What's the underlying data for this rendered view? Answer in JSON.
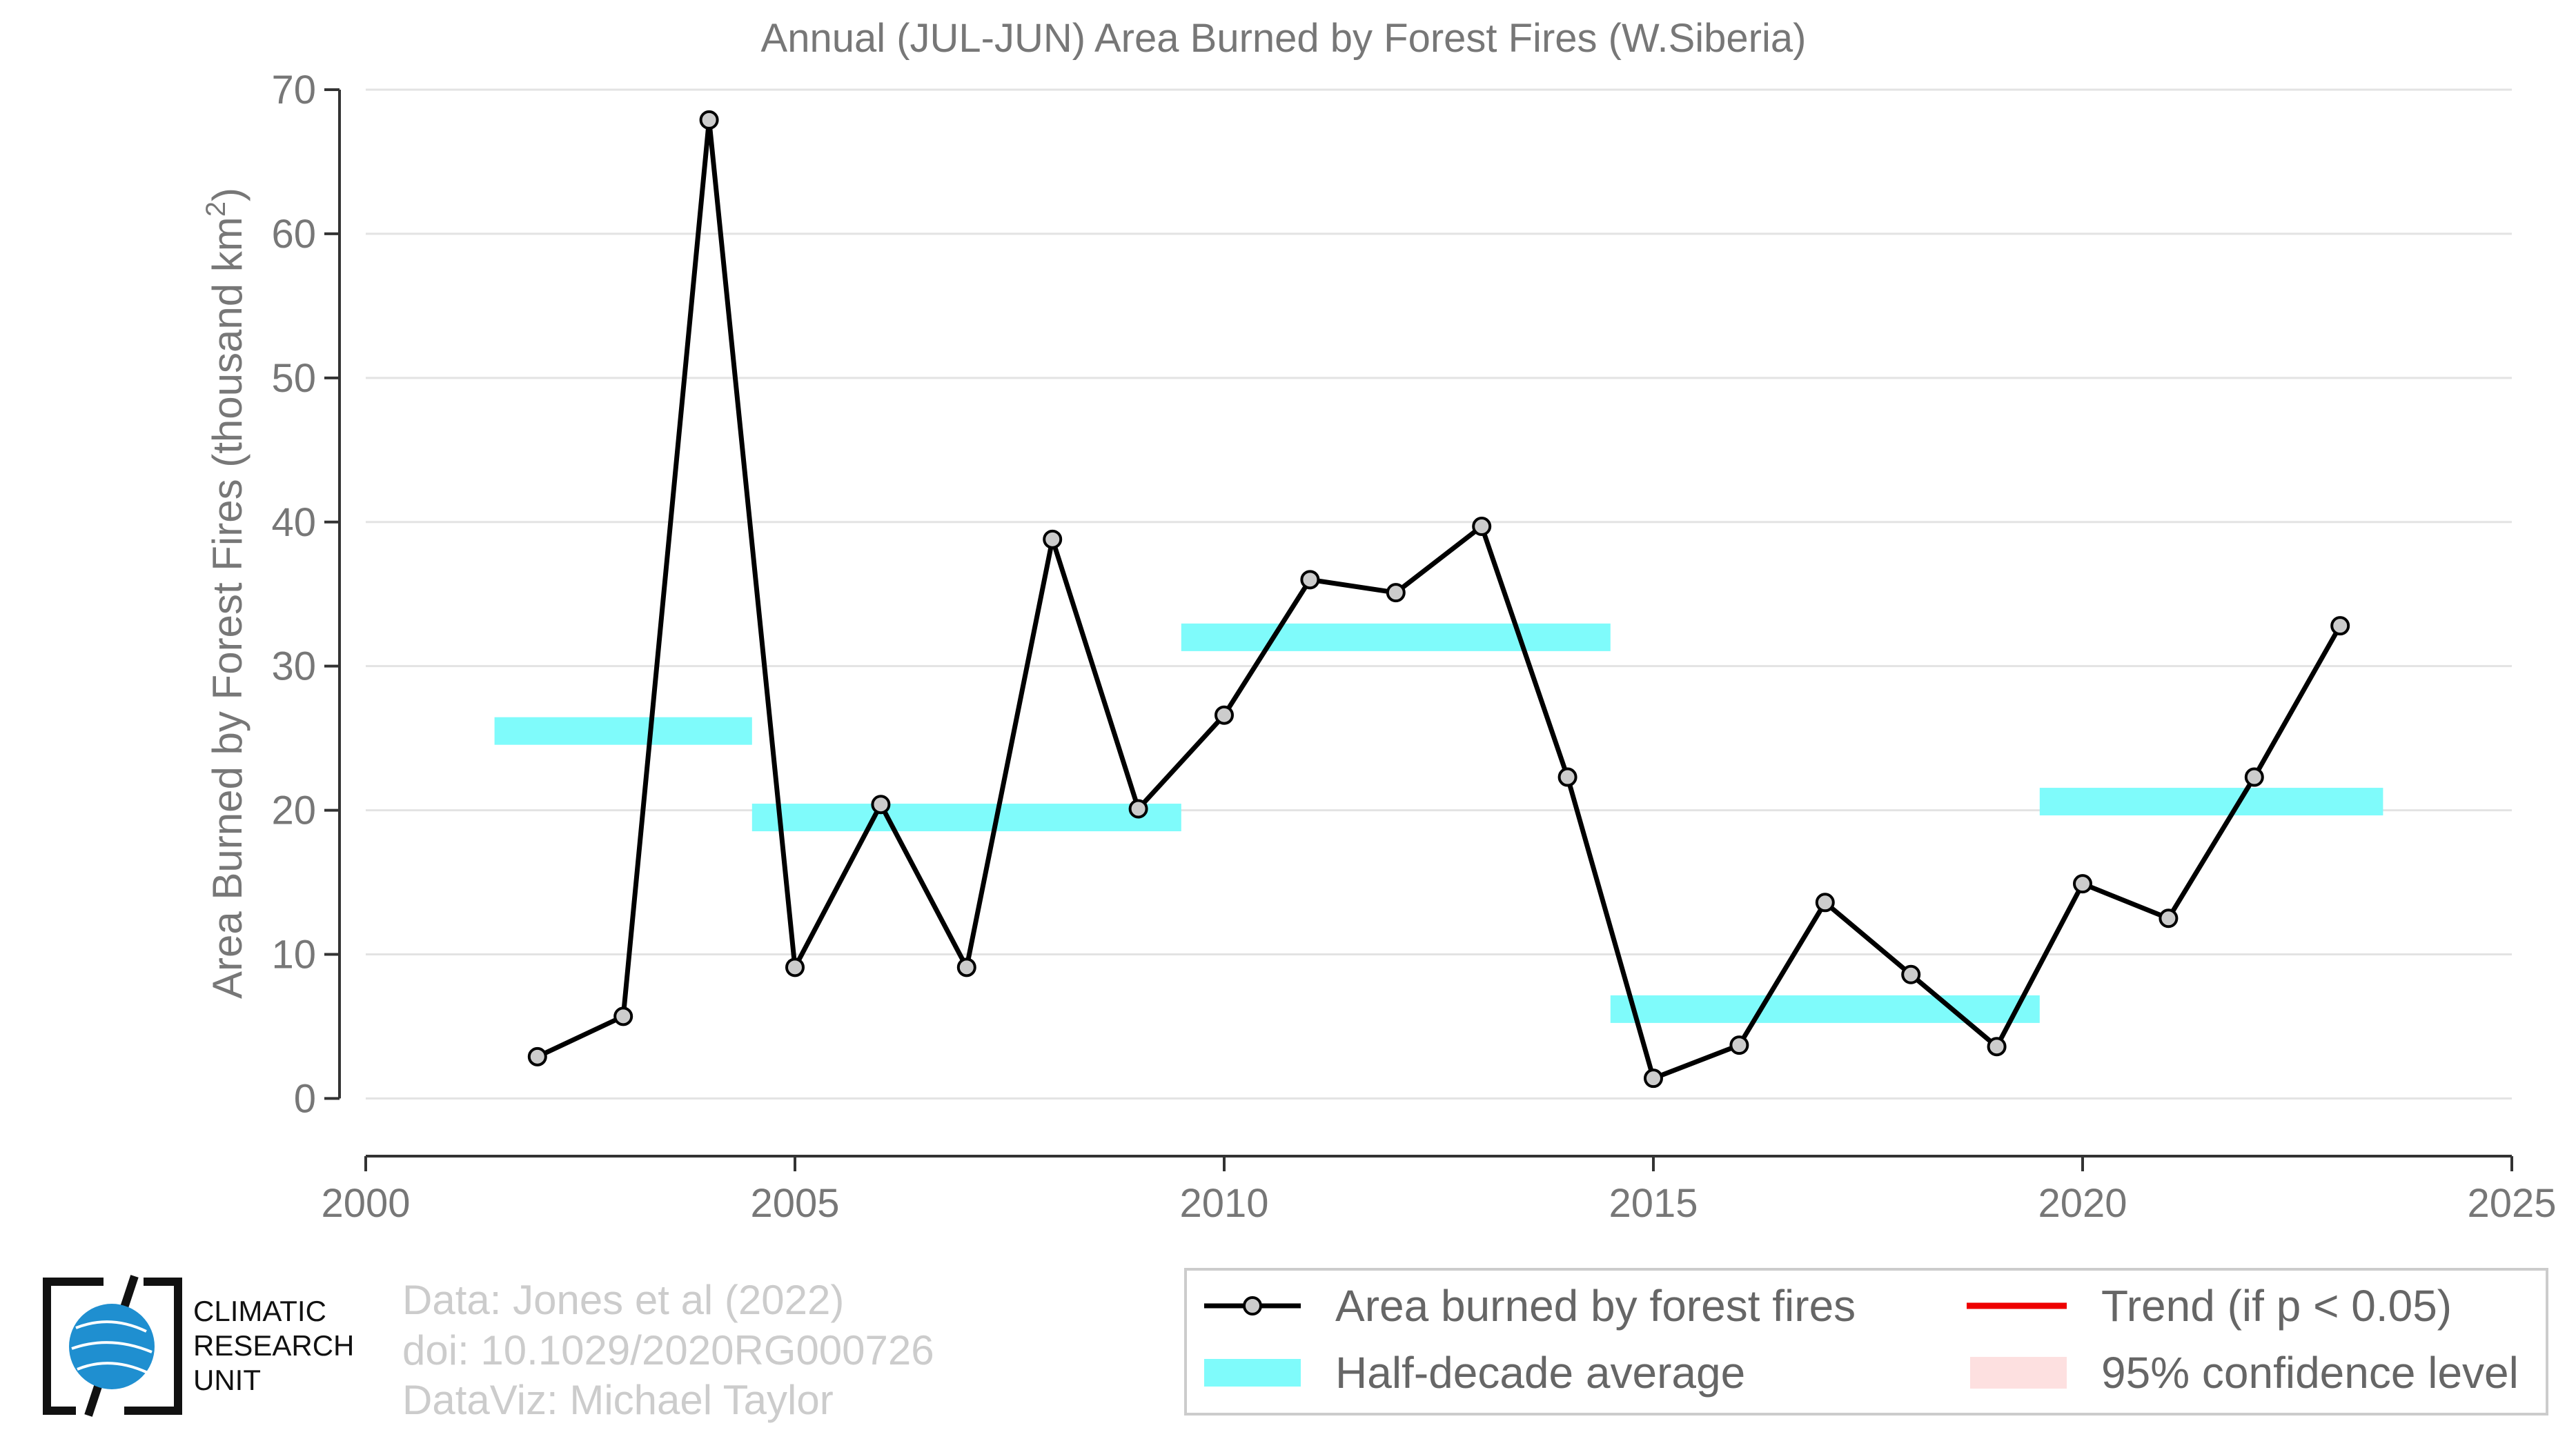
{
  "chart_data": {
    "type": "line",
    "title": "Annual (JUL-JUN) Area Burned by Forest Fires (W.Siberia)",
    "ylabel_main": "Area Burned by Forest Fires (thousand km",
    "ylabel_sup": "2",
    "ylabel_close": ")",
    "xlim": [
      2000,
      2025
    ],
    "ylim": [
      -4,
      70
    ],
    "x_ticks": [
      2000,
      2005,
      2010,
      2015,
      2020,
      2025
    ],
    "y_ticks": [
      0,
      10,
      20,
      30,
      40,
      50,
      60,
      70
    ],
    "grid": true,
    "legend_position": "bottom-right",
    "series": [
      {
        "name": "Area burned by forest fires",
        "color": "#000000",
        "marker_fill": "#cccccc",
        "x": [
          2002,
          2003,
          2004,
          2005,
          2006,
          2007,
          2008,
          2009,
          2010,
          2011,
          2012,
          2013,
          2014,
          2015,
          2016,
          2017,
          2018,
          2019,
          2020,
          2021,
          2022,
          2023
        ],
        "y": [
          2.9,
          5.7,
          67.9,
          9.1,
          20.4,
          9.1,
          38.8,
          20.1,
          26.6,
          36.0,
          35.1,
          39.7,
          22.3,
          1.4,
          3.7,
          13.6,
          8.6,
          3.6,
          14.9,
          12.5,
          22.3,
          32.8
        ]
      }
    ],
    "half_decade_averages": {
      "name": "Half-decade average",
      "color": "#7ffbfb",
      "segments": [
        {
          "x_start": 2001.5,
          "x_end": 2004.5,
          "value": 25.5
        },
        {
          "x_start": 2004.5,
          "x_end": 2009.5,
          "value": 19.5
        },
        {
          "x_start": 2009.5,
          "x_end": 2014.5,
          "value": 32.0
        },
        {
          "x_start": 2014.5,
          "x_end": 2019.5,
          "value": 6.2
        },
        {
          "x_start": 2019.5,
          "x_end": 2023.5,
          "value": 20.6
        }
      ]
    },
    "legend": {
      "series_label": "Area burned by forest fires",
      "average_label": "Half-decade average",
      "trend_label": "Trend (if p < 0.05)",
      "trend_color": "#ee0000",
      "confidence_label": "95% confidence level",
      "confidence_color": "#fde0e0"
    }
  },
  "credits": {
    "line1": "Data: Jones et al (2022)",
    "line2": "doi: 10.1029/2020RG000726",
    "line3": "DataViz: Michael Taylor"
  },
  "logo": {
    "line1": "CLIMATIC",
    "line2": "RESEARCH",
    "line3": "UNIT",
    "globe_color": "#1f8fd0"
  }
}
